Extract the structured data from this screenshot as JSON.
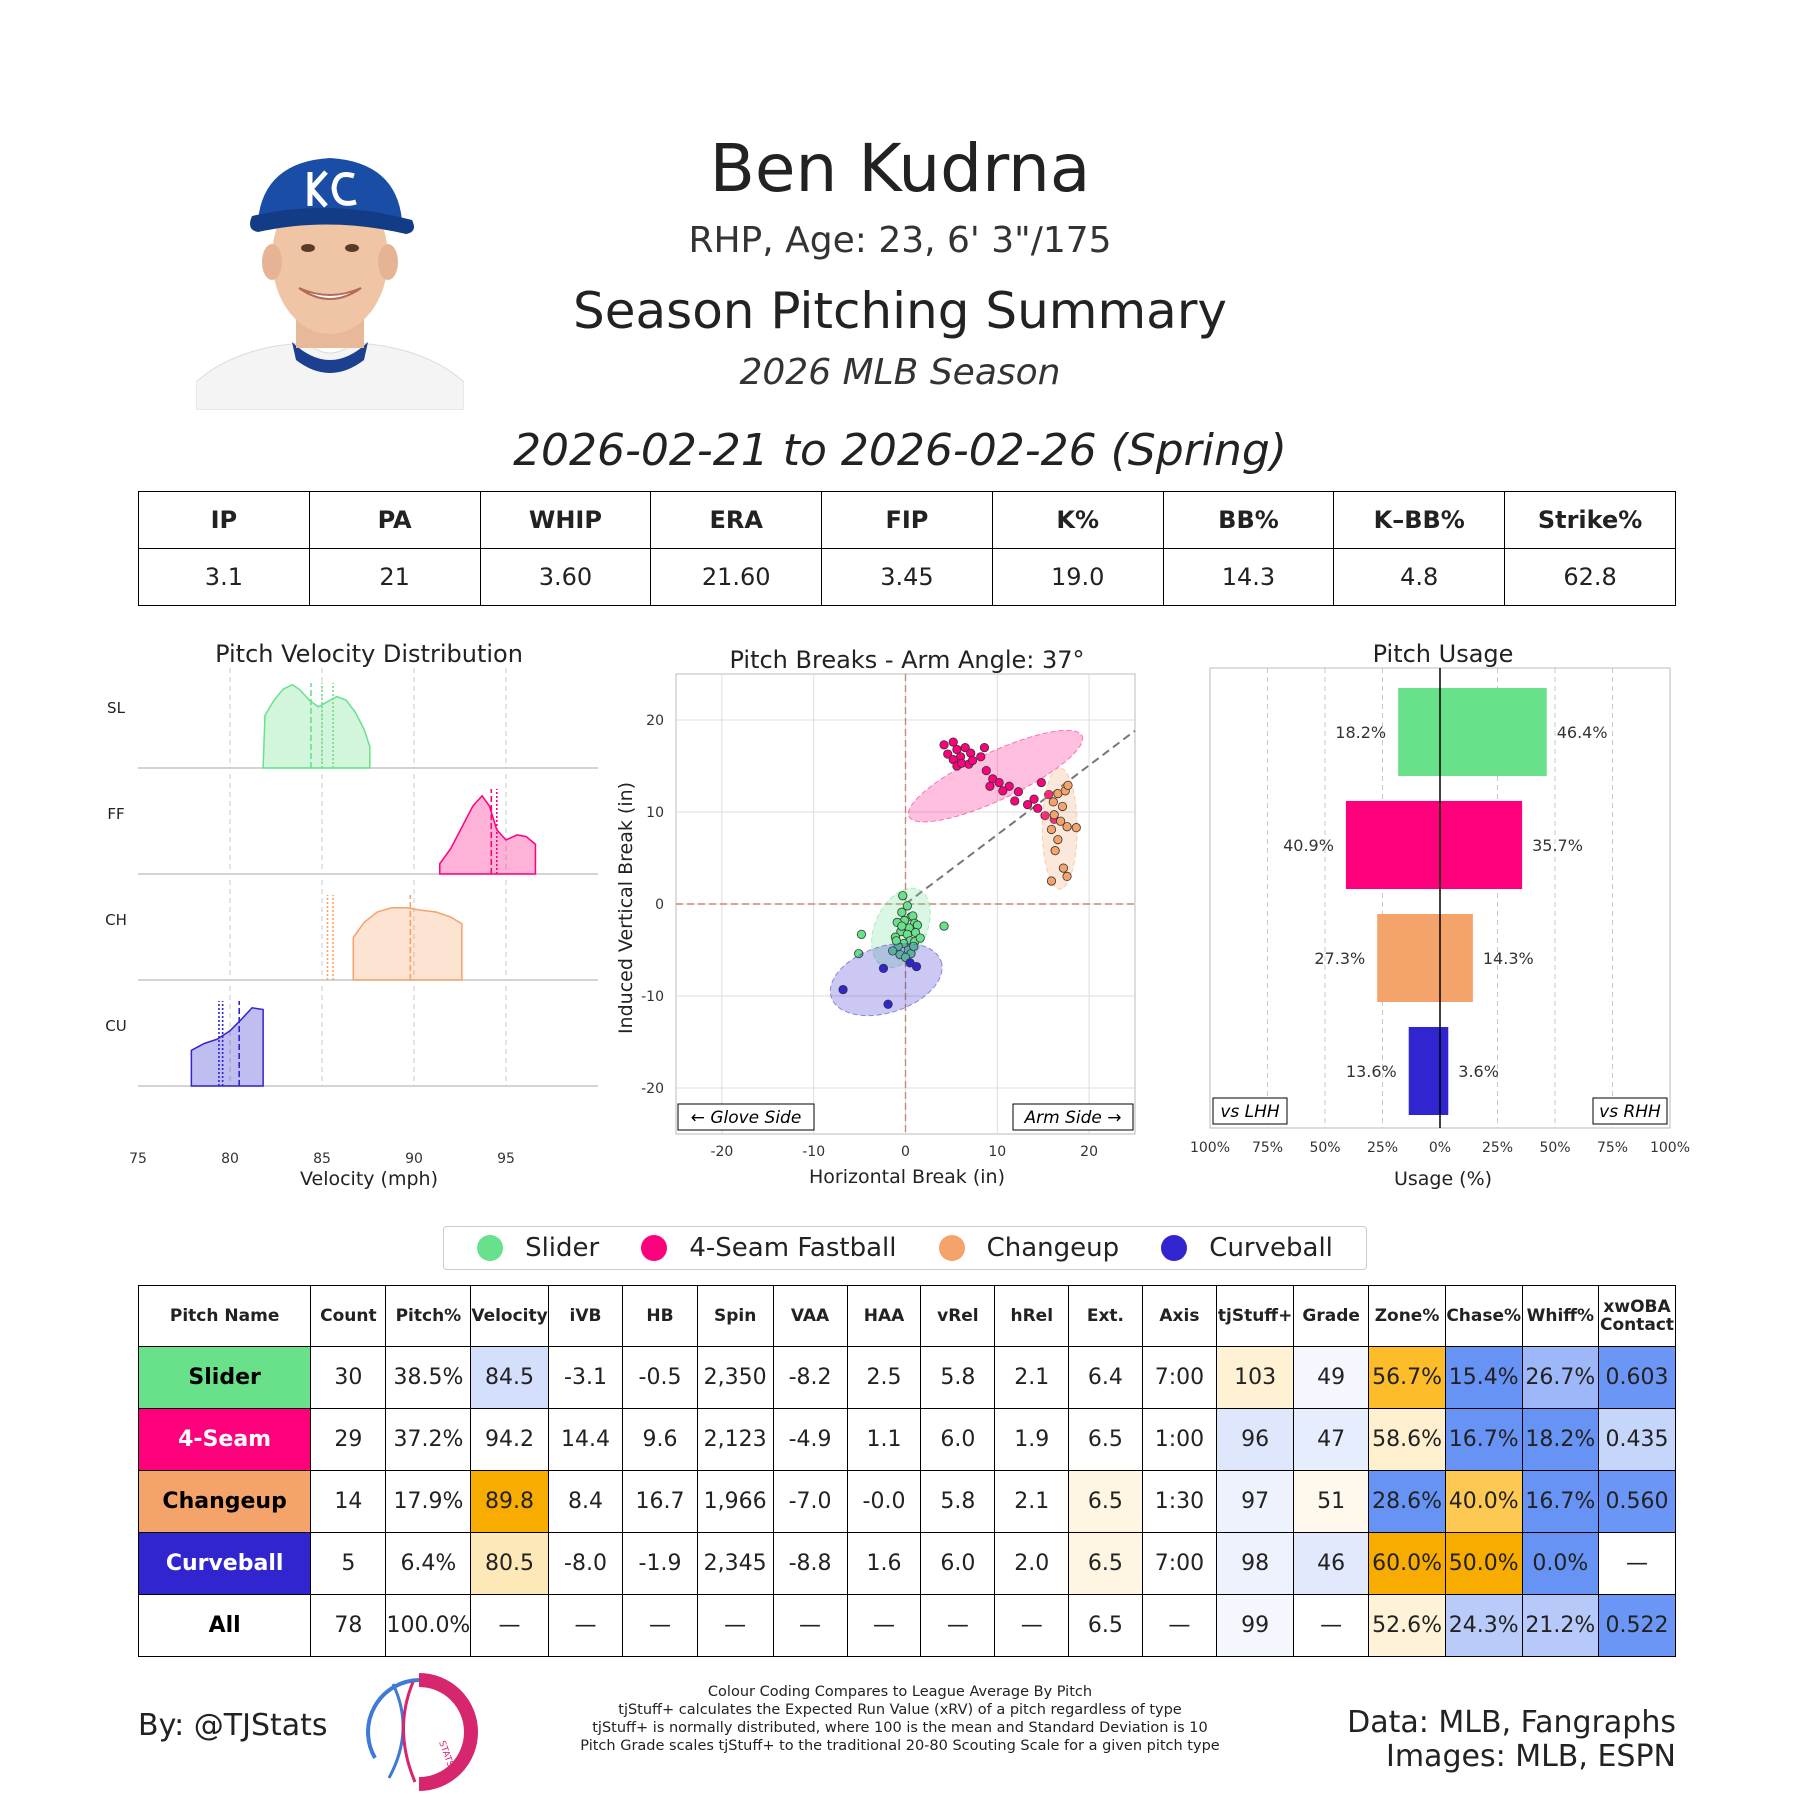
{
  "header": {
    "name": "Ben Kudrna",
    "bio": "RHP, Age: 23, 6' 3\"/175",
    "summary_title": "Season Pitching Summary",
    "season": "2026 MLB Season",
    "date_range": "2026-02-21 to 2026-02-26 (Spring)"
  },
  "season_stats": {
    "headers": [
      "IP",
      "PA",
      "WHIP",
      "ERA",
      "FIP",
      "K%",
      "BB%",
      "K–BB%",
      "Strike%"
    ],
    "values": [
      "3.1",
      "21",
      "3.60",
      "21.60",
      "3.45",
      "19.0",
      "14.3",
      "4.8",
      "62.8"
    ]
  },
  "pitch_types": {
    "SL": {
      "name": "Slider",
      "color": "#69e08a"
    },
    "FF": {
      "name": "4-Seam Fastball",
      "color": "#ff007d"
    },
    "CH": {
      "name": "Changeup",
      "color": "#f4a36b"
    },
    "CU": {
      "name": "Curveball",
      "color": "#3025ce"
    }
  },
  "legend": {
    "items": [
      {
        "label": "Slider",
        "color": "#69e08a"
      },
      {
        "label": "4-Seam Fastball",
        "color": "#ff007d"
      },
      {
        "label": "Changeup",
        "color": "#f4a36b"
      },
      {
        "label": "Curveball",
        "color": "#3025ce"
      }
    ]
  },
  "chart_data": [
    {
      "type": "area",
      "title": "Pitch Velocity Distribution",
      "xlabel": "Velocity (mph)",
      "xlim": [
        75,
        100
      ],
      "xticks": [
        75,
        80,
        85,
        90,
        95
      ],
      "grid": "vertical dashed",
      "series": [
        {
          "name": "SL",
          "color": "#69e08a",
          "density": [
            [
              81.8,
              0
            ],
            [
              81.9,
              0.62
            ],
            [
              82.4,
              0.8
            ],
            [
              82.9,
              0.93
            ],
            [
              83.4,
              0.98
            ],
            [
              83.8,
              0.92
            ],
            [
              84.3,
              0.8
            ],
            [
              84.8,
              0.72
            ],
            [
              85.3,
              0.78
            ],
            [
              85.8,
              0.84
            ],
            [
              86.3,
              0.8
            ],
            [
              86.8,
              0.66
            ],
            [
              87.3,
              0.45
            ],
            [
              87.6,
              0.25
            ],
            [
              87.6,
              0
            ]
          ],
          "markers": [
            {
              "x": 84.4,
              "style": "dashed"
            },
            {
              "x": 85.0,
              "style": "dotted"
            },
            {
              "x": 85.6,
              "style": "dotted"
            }
          ]
        },
        {
          "name": "FF",
          "color": "#ff007d",
          "density": [
            [
              91.4,
              0
            ],
            [
              91.4,
              0.12
            ],
            [
              92.0,
              0.3
            ],
            [
              92.6,
              0.55
            ],
            [
              93.2,
              0.8
            ],
            [
              93.7,
              0.92
            ],
            [
              94.1,
              0.8
            ],
            [
              94.5,
              0.52
            ],
            [
              95.0,
              0.4
            ],
            [
              95.6,
              0.46
            ],
            [
              96.1,
              0.44
            ],
            [
              96.6,
              0.35
            ],
            [
              96.6,
              0
            ]
          ],
          "markers": [
            {
              "x": 94.2,
              "style": "dashed"
            },
            {
              "x": 94.5,
              "style": "dotted"
            }
          ]
        },
        {
          "name": "CH",
          "color": "#f4a36b",
          "density": [
            [
              86.7,
              0
            ],
            [
              86.7,
              0.5
            ],
            [
              87.3,
              0.68
            ],
            [
              88.0,
              0.8
            ],
            [
              88.8,
              0.85
            ],
            [
              89.6,
              0.85
            ],
            [
              90.4,
              0.82
            ],
            [
              91.2,
              0.8
            ],
            [
              92.0,
              0.74
            ],
            [
              92.6,
              0.66
            ],
            [
              92.6,
              0
            ]
          ],
          "markers": [
            {
              "x": 85.3,
              "style": "dotted"
            },
            {
              "x": 85.6,
              "style": "dotted"
            },
            {
              "x": 89.8,
              "style": "dashed"
            }
          ]
        },
        {
          "name": "CU",
          "color": "#3025ce",
          "density": [
            [
              77.9,
              0
            ],
            [
              77.9,
              0.42
            ],
            [
              78.6,
              0.5
            ],
            [
              79.3,
              0.55
            ],
            [
              80.0,
              0.65
            ],
            [
              80.6,
              0.78
            ],
            [
              81.2,
              0.92
            ],
            [
              81.8,
              0.9
            ],
            [
              81.8,
              0
            ]
          ],
          "markers": [
            {
              "x": 79.4,
              "style": "dotted"
            },
            {
              "x": 79.6,
              "style": "dotted"
            },
            {
              "x": 80.5,
              "style": "dashed"
            }
          ]
        }
      ]
    },
    {
      "type": "scatter",
      "title": "Pitch Breaks - Arm Angle: 37°",
      "xlabel": "Horizontal Break (in)",
      "ylabel": "Induced Vertical Break (in)",
      "xlim": [
        -25,
        25
      ],
      "ylim": [
        -25,
        25
      ],
      "xticks": [
        -20,
        -10,
        0,
        10,
        20
      ],
      "yticks": [
        -20,
        -10,
        0,
        10,
        20
      ],
      "grid": true,
      "arm_angle_deg": 37,
      "annotations": [
        "← Glove Side",
        "Arm Side →"
      ],
      "series": [
        {
          "name": "SL",
          "color": "#69e08a",
          "points": [
            [
              -0.3,
              0.9
            ],
            [
              0.2,
              -0.2
            ],
            [
              -0.4,
              -0.9
            ],
            [
              0.6,
              -1.4
            ],
            [
              -0.1,
              -1.8
            ],
            [
              0.8,
              -1.3
            ],
            [
              1.0,
              -2.1
            ],
            [
              -0.9,
              -2.0
            ],
            [
              0.4,
              -2.6
            ],
            [
              1.3,
              -2.3
            ],
            [
              -0.5,
              -3.0
            ],
            [
              0.2,
              -3.3
            ],
            [
              1.1,
              -3.1
            ],
            [
              -1.1,
              -3.6
            ],
            [
              0.5,
              -4.0
            ],
            [
              -0.2,
              -4.3
            ],
            [
              1.0,
              -4.1
            ],
            [
              -0.8,
              -4.6
            ],
            [
              0.3,
              -5.0
            ],
            [
              -1.4,
              -5.1
            ],
            [
              0.6,
              -5.4
            ],
            [
              -0.6,
              -5.5
            ],
            [
              1.6,
              -3.7
            ],
            [
              -4.8,
              -3.3
            ],
            [
              -5.1,
              -5.4
            ],
            [
              4.2,
              -2.4
            ],
            [
              0.0,
              -5.8
            ],
            [
              -0.4,
              -2.4
            ],
            [
              0.9,
              -4.6
            ],
            [
              -1.0,
              -4.0
            ]
          ],
          "ellipse": {
            "cx": -0.5,
            "cy": -2.6,
            "rx": 4.6,
            "ry": 2.8,
            "angle": -65
          }
        },
        {
          "name": "FF",
          "color": "#ff007d",
          "points": [
            [
              4.2,
              17.3
            ],
            [
              5.2,
              17.6
            ],
            [
              4.6,
              16.3
            ],
            [
              5.6,
              16.8
            ],
            [
              6.0,
              16.0
            ],
            [
              6.5,
              17.0
            ],
            [
              5.2,
              15.7
            ],
            [
              7.1,
              16.4
            ],
            [
              8.2,
              16.0
            ],
            [
              8.6,
              17.0
            ],
            [
              6.9,
              15.2
            ],
            [
              5.6,
              15.0
            ],
            [
              8.8,
              14.5
            ],
            [
              9.5,
              13.6
            ],
            [
              10.2,
              13.2
            ],
            [
              11.3,
              12.8
            ],
            [
              11.9,
              11.2
            ],
            [
              12.3,
              12.2
            ],
            [
              14.0,
              11.4
            ],
            [
              14.4,
              10.4
            ],
            [
              14.8,
              13.2
            ],
            [
              15.6,
              11.9
            ],
            [
              15.2,
              9.6
            ],
            [
              16.2,
              9.2
            ],
            [
              13.3,
              10.8
            ],
            [
              9.2,
              12.8
            ],
            [
              7.3,
              15.6
            ],
            [
              6.1,
              15.3
            ],
            [
              10.6,
              12.3
            ]
          ],
          "ellipse": {
            "cx": 9.8,
            "cy": 13.9,
            "rx": 10.4,
            "ry": 2.6,
            "angle": -25
          }
        },
        {
          "name": "CH",
          "color": "#f4a36b",
          "points": [
            [
              16.6,
              12.0
            ],
            [
              17.4,
              12.3
            ],
            [
              17.7,
              12.9
            ],
            [
              16.1,
              11.1
            ],
            [
              17.1,
              10.6
            ],
            [
              16.2,
              9.7
            ],
            [
              16.9,
              9.0
            ],
            [
              17.6,
              8.4
            ],
            [
              15.9,
              8.1
            ],
            [
              18.6,
              8.3
            ],
            [
              16.6,
              7.0
            ],
            [
              16.3,
              5.8
            ],
            [
              17.2,
              3.9
            ],
            [
              17.6,
              3.0
            ],
            [
              15.9,
              2.5
            ]
          ],
          "ellipse": {
            "cx": 16.8,
            "cy": 8.2,
            "rx": 1.9,
            "ry": 6.6,
            "angle": 0
          }
        },
        {
          "name": "CU",
          "color": "#3025ce",
          "points": [
            [
              -6.8,
              -9.3
            ],
            [
              -2.4,
              -7.0
            ],
            [
              0.5,
              -6.4
            ],
            [
              1.2,
              -6.8
            ],
            [
              -1.9,
              -10.9
            ]
          ],
          "ellipse": {
            "cx": -2.1,
            "cy": -8.2,
            "rx": 6.3,
            "ry": 3.6,
            "angle": -18
          }
        }
      ]
    },
    {
      "type": "bar",
      "title": "Pitch Usage",
      "xlabel": "Usage (%)",
      "xlim": [
        -100,
        100
      ],
      "xticks": [
        "100%",
        "75%",
        "50%",
        "25%",
        "0%",
        "25%",
        "50%",
        "75%",
        "100%"
      ],
      "left_label": "vs LHH",
      "right_label": "vs RHH",
      "categories": [
        "SL",
        "FF",
        "CH",
        "CU"
      ],
      "series": [
        {
          "name": "vs LHH",
          "values": [
            18.2,
            40.9,
            27.3,
            13.6
          ],
          "labels": [
            "18.2%",
            "40.9%",
            "27.3%",
            "13.6%"
          ]
        },
        {
          "name": "vs RHH",
          "values": [
            46.4,
            35.7,
            14.3,
            3.6
          ],
          "labels": [
            "46.4%",
            "35.7%",
            "14.3%",
            "3.6%"
          ]
        }
      ]
    },
    {
      "type": "table",
      "columns": [
        "Pitch Name",
        "Count",
        "Pitch%",
        "Velocity",
        "iVB",
        "HB",
        "Spin",
        "VAA",
        "HAA",
        "vRel",
        "hRel",
        "Ext.",
        "Axis",
        "tjStuff+",
        "Grade",
        "Zone%",
        "Chase%",
        "Whiff%",
        "xwOBA Contact"
      ],
      "rows": [
        {
          "pitch": "Slider",
          "label_color": "#69e08a",
          "label_text_color": "#000000",
          "cells": [
            "30",
            "38.5%",
            "84.5",
            "-3.1",
            "-0.5",
            "2,350",
            "-8.2",
            "2.5",
            "5.8",
            "2.1",
            "6.4",
            "7:00",
            "103",
            "49",
            "56.7%",
            "15.4%",
            "26.7%",
            "0.603"
          ],
          "bg": [
            "#ffffff",
            "#ffffff",
            "#d4dffb",
            "#ffffff",
            "#ffffff",
            "#ffffff",
            "#ffffff",
            "#ffffff",
            "#ffffff",
            "#ffffff",
            "#ffffff",
            "#ffffff",
            "#fef1d4",
            "#f5f7fe",
            "#fdbc2a",
            "#6793f5",
            "#9db7f8",
            "#6b96f5"
          ]
        },
        {
          "pitch": "4-Seam",
          "label_color": "#ff007d",
          "label_text_color": "#ffffff",
          "cells": [
            "29",
            "37.2%",
            "94.2",
            "14.4",
            "9.6",
            "2,123",
            "-4.9",
            "1.1",
            "6.0",
            "1.9",
            "6.5",
            "1:00",
            "96",
            "47",
            "58.6%",
            "16.7%",
            "18.2%",
            "0.435"
          ],
          "bg": [
            "#ffffff",
            "#ffffff",
            "#ffffff",
            "#ffffff",
            "#ffffff",
            "#ffffff",
            "#ffffff",
            "#ffffff",
            "#ffffff",
            "#ffffff",
            "#ffffff",
            "#ffffff",
            "#dfe7fc",
            "#e6edfd",
            "#fef0cf",
            "#6793f5",
            "#6793f5",
            "#c6d5fa"
          ]
        },
        {
          "pitch": "Changeup",
          "label_color": "#f4a36b",
          "label_text_color": "#000000",
          "cells": [
            "14",
            "17.9%",
            "89.8",
            "8.4",
            "16.7",
            "1,966",
            "-7.0",
            "-0.0",
            "5.8",
            "2.1",
            "6.5",
            "1:30",
            "97",
            "51",
            "28.6%",
            "40.0%",
            "16.7%",
            "0.560"
          ],
          "bg": [
            "#ffffff",
            "#ffffff",
            "#f9ac00",
            "#ffffff",
            "#ffffff",
            "#ffffff",
            "#ffffff",
            "#ffffff",
            "#ffffff",
            "#ffffff",
            "#fef6e2",
            "#ffffff",
            "#eef2fd",
            "#fef9ec",
            "#6793f5",
            "#fdc953",
            "#6793f5",
            "#6b96f5"
          ]
        },
        {
          "pitch": "Curveball",
          "label_color": "#3025ce",
          "label_text_color": "#ffffff",
          "cells": [
            "5",
            "6.4%",
            "80.5",
            "-8.0",
            "-1.9",
            "2,345",
            "-8.8",
            "1.6",
            "6.0",
            "2.0",
            "6.5",
            "7:00",
            "98",
            "46",
            "60.0%",
            "50.0%",
            "0.0%",
            "—"
          ],
          "bg": [
            "#ffffff",
            "#ffffff",
            "#fde8b8",
            "#ffffff",
            "#ffffff",
            "#ffffff",
            "#ffffff",
            "#ffffff",
            "#ffffff",
            "#ffffff",
            "#fef6e2",
            "#ffffff",
            "#eef2fd",
            "#e2e9fc",
            "#f9ac00",
            "#f9ac00",
            "#6793f5",
            "#ffffff"
          ]
        },
        {
          "pitch": "All",
          "label_color": "#ffffff",
          "label_text_color": "#000000",
          "cells": [
            "78",
            "100.0%",
            "—",
            "—",
            "—",
            "—",
            "—",
            "—",
            "—",
            "—",
            "6.5",
            "—",
            "99",
            "—",
            "52.6%",
            "24.3%",
            "21.2%",
            "0.522"
          ],
          "bg": [
            "#ffffff",
            "#ffffff",
            "#ffffff",
            "#ffffff",
            "#ffffff",
            "#ffffff",
            "#ffffff",
            "#ffffff",
            "#ffffff",
            "#ffffff",
            "#ffffff",
            "#ffffff",
            "#f5f7fe",
            "#ffffff",
            "#fef3d9",
            "#b9cbf9",
            "#b6c9f9",
            "#6b96f5"
          ]
        }
      ]
    }
  ],
  "footer": {
    "byline": "By: @TJStats",
    "logo_text": "STATS",
    "notes": [
      "Colour Coding Compares to League Average By Pitch",
      "tjStuff+ calculates the Expected Run Value (xRV) of a pitch regardless of type",
      "tjStuff+ is normally distributed, where 100 is the mean and Standard Deviation is 10",
      "Pitch Grade scales tjStuff+ to the traditional 20-80 Scouting Scale for a given pitch type"
    ],
    "credit_data": "Data: MLB, Fangraphs",
    "credit_images": "Images: MLB, ESPN"
  }
}
